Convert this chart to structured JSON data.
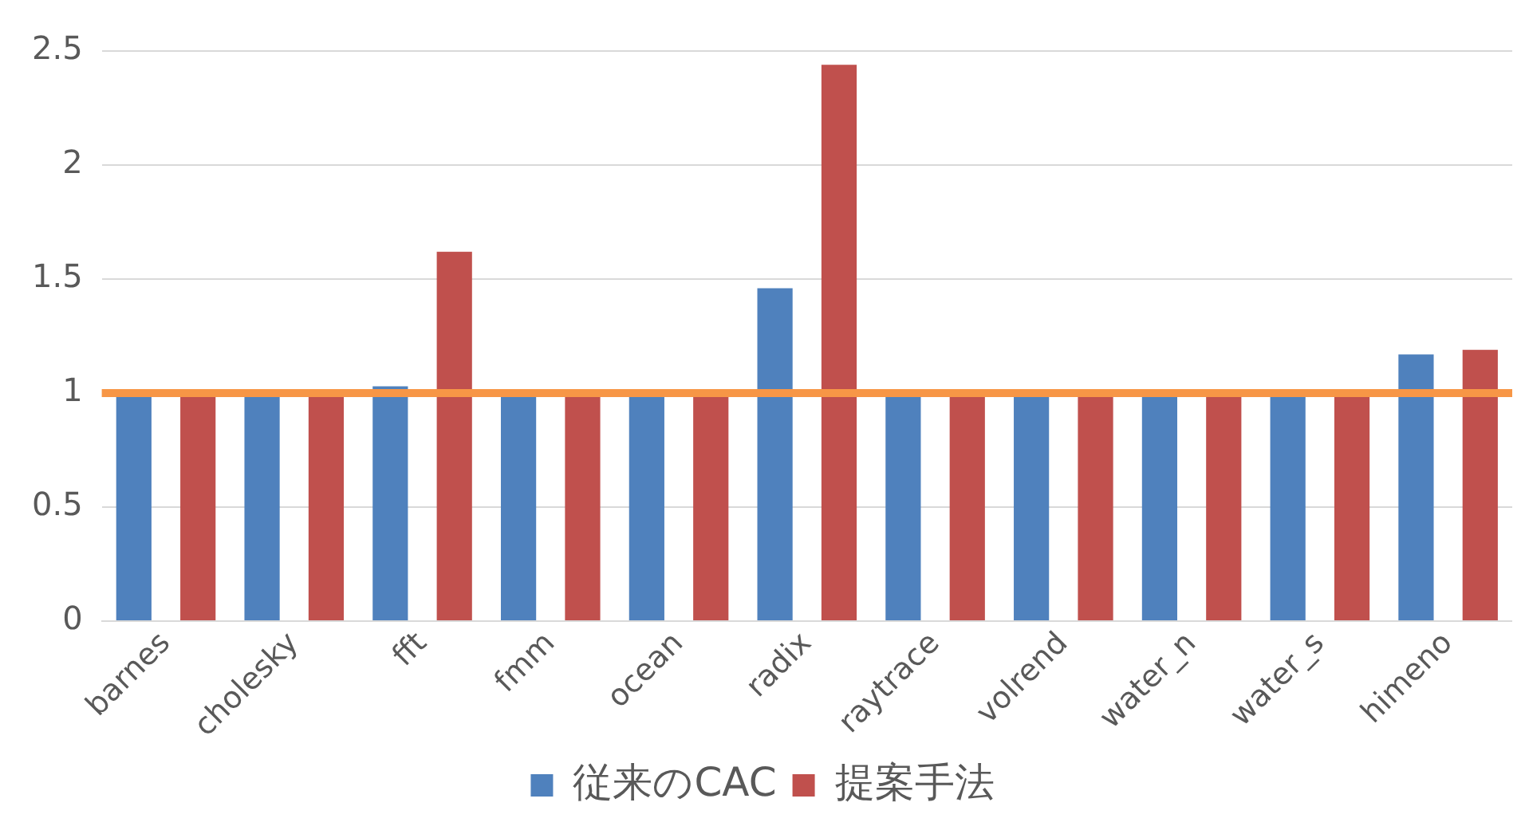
{
  "chart_data": {
    "type": "bar",
    "categories": [
      "barnes",
      "cholesky",
      "fft",
      "fmm",
      "ocean",
      "radix",
      "raytrace",
      "volrend",
      "water_n",
      "water_s",
      "himeno"
    ],
    "series": [
      {
        "name": "従来のCAC",
        "color": "#4f81bd",
        "values": [
          1,
          1,
          1.03,
          1,
          1,
          1.46,
          1,
          1,
          1,
          1,
          1.17
        ]
      },
      {
        "name": "提案手法",
        "color": "#c0504d",
        "values": [
          1,
          1,
          1.62,
          1,
          1,
          2.44,
          1,
          1,
          1,
          1,
          1.19
        ]
      }
    ],
    "ylim": [
      0,
      2.5
    ],
    "yticks": [
      0,
      0.5,
      1,
      1.5,
      2,
      2.5
    ],
    "grid": "y",
    "legend": "bottom",
    "ref_lines": [
      {
        "axis": "y",
        "value": 1,
        "color": "#f79646"
      }
    ]
  }
}
